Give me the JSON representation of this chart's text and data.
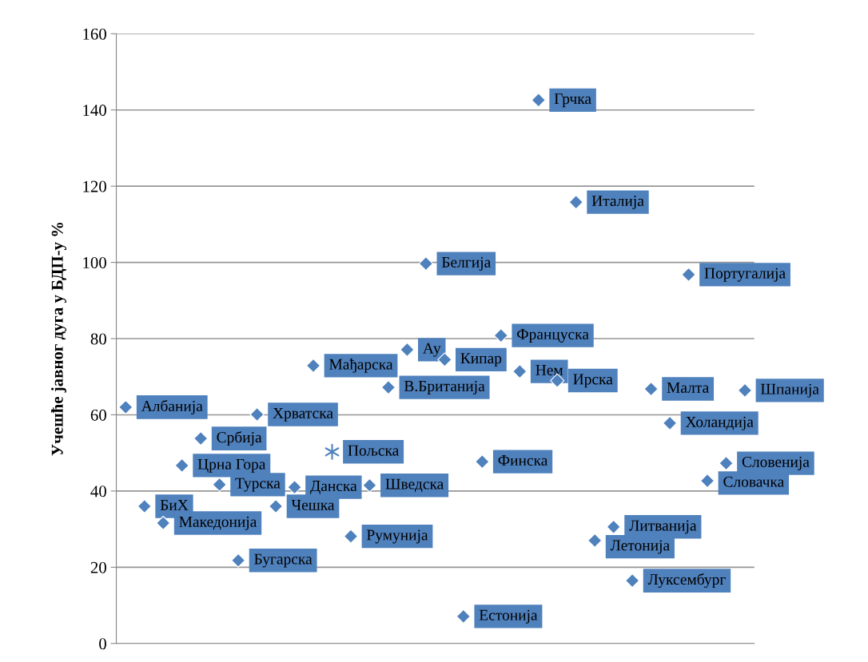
{
  "chart_data": {
    "type": "scatter",
    "ylabel": "Учешће јавног дуга у БДП-у %",
    "categories": [
      null,
      null,
      null,
      null,
      null,
      null,
      null,
      null,
      null,
      null,
      null,
      null,
      null,
      null,
      null,
      null,
      null,
      null,
      null,
      null,
      null,
      null,
      null,
      null,
      null,
      null,
      null,
      null,
      null,
      null,
      null,
      null,
      null,
      null
    ],
    "ylim": [
      0,
      160
    ],
    "yticks": [
      0,
      20,
      40,
      60,
      80,
      100,
      120,
      140,
      160
    ],
    "grid": "y",
    "marker": "diamond",
    "series": [
      {
        "color": "#4f81bd",
        "values": [
          62,
          36,
          31.6,
          46.7,
          53.8,
          41.7,
          21.8,
          60.1,
          36,
          41,
          72.9,
          null,
          28.1,
          41.5,
          67.2,
          77.1,
          99.7,
          74.5,
          7.1,
          47.7,
          80.8,
          71.4,
          142.6,
          69,
          115.8,
          27,
          30.6,
          16.5,
          66.8,
          57.8,
          96.8,
          42.7,
          47.3,
          66.4
        ],
        "value_labels": [
          "Албанија",
          "БиХ",
          "Македонија",
          "Црна Гора",
          "Србија",
          "Турска",
          "Бугарска",
          "Хрватска",
          "Чешка",
          "Данска",
          "Мађарска",
          null,
          "Румунија",
          "Шведска",
          "В.Британија",
          "Ау",
          "Белгија",
          "Кипар",
          "Естонија",
          "Финска",
          "Француска",
          "Нем",
          "Грчка",
          "Ирска",
          "Италија",
          "Летонија",
          "Литванија",
          "Луксембург",
          "Малта",
          "Холандија",
          "Португалија",
          "Словачка",
          "Словенија",
          "Шпанија"
        ]
      },
      {
        "color": "#4f81bd",
        "marker": "cross",
        "values": [
          null,
          null,
          null,
          null,
          null,
          null,
          null,
          null,
          null,
          null,
          null,
          50.3,
          null,
          null,
          null,
          null,
          null,
          null,
          null,
          null,
          null,
          null,
          null,
          null,
          null,
          null,
          null,
          null,
          null,
          null,
          null,
          null,
          null,
          null
        ],
        "value_labels": [
          null,
          null,
          null,
          null,
          null,
          null,
          null,
          null,
          null,
          null,
          null,
          "Пољска",
          null,
          null,
          null,
          null,
          null,
          null,
          null,
          null,
          null,
          null,
          null,
          null,
          null,
          null,
          null,
          null,
          null,
          null,
          null,
          null,
          null,
          null
        ]
      }
    ]
  }
}
